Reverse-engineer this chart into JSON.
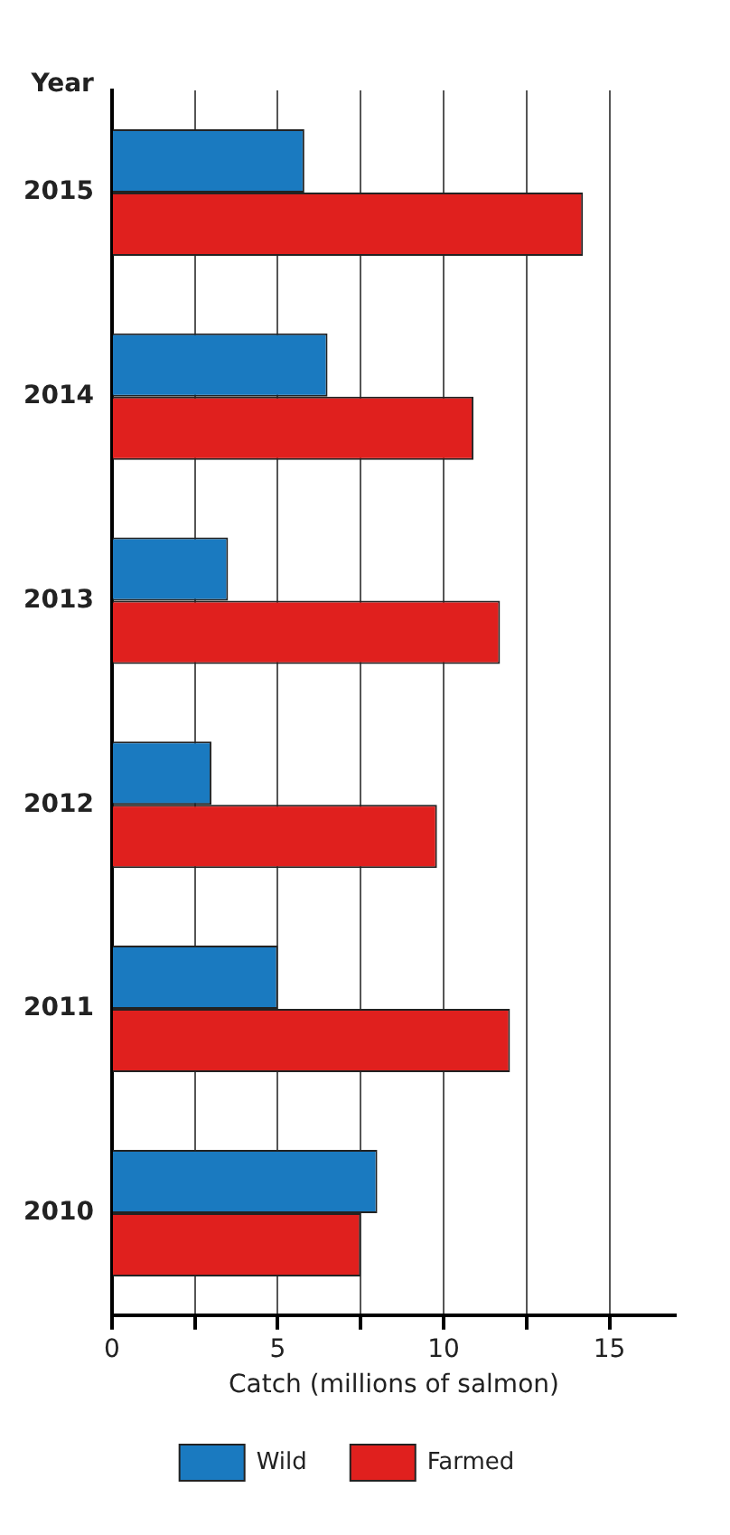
{
  "chart_data": {
    "type": "bar",
    "orientation": "horizontal",
    "xlabel": "Catch (millions of salmon)",
    "ylabel": "Year",
    "categories": [
      "2015",
      "2014",
      "2013",
      "2012",
      "2011",
      "2010"
    ],
    "series": [
      {
        "name": "Wild",
        "color": "#1a7ac0",
        "values": [
          5.8,
          6.5,
          3.5,
          3,
          5,
          8
        ]
      },
      {
        "name": "Farmed",
        "color": "#e0201e",
        "values": [
          14.2,
          10.9,
          11.7,
          9.8,
          12,
          7.5
        ]
      }
    ],
    "xlim": [
      0,
      17
    ],
    "xticks": [
      0,
      {
        "value": 2.5,
        "label": null
      },
      5,
      {
        "value": 7.5,
        "label": null
      },
      10,
      {
        "value": 12.5,
        "label": null
      },
      15
    ],
    "grid": "x",
    "legend": "bottom"
  }
}
